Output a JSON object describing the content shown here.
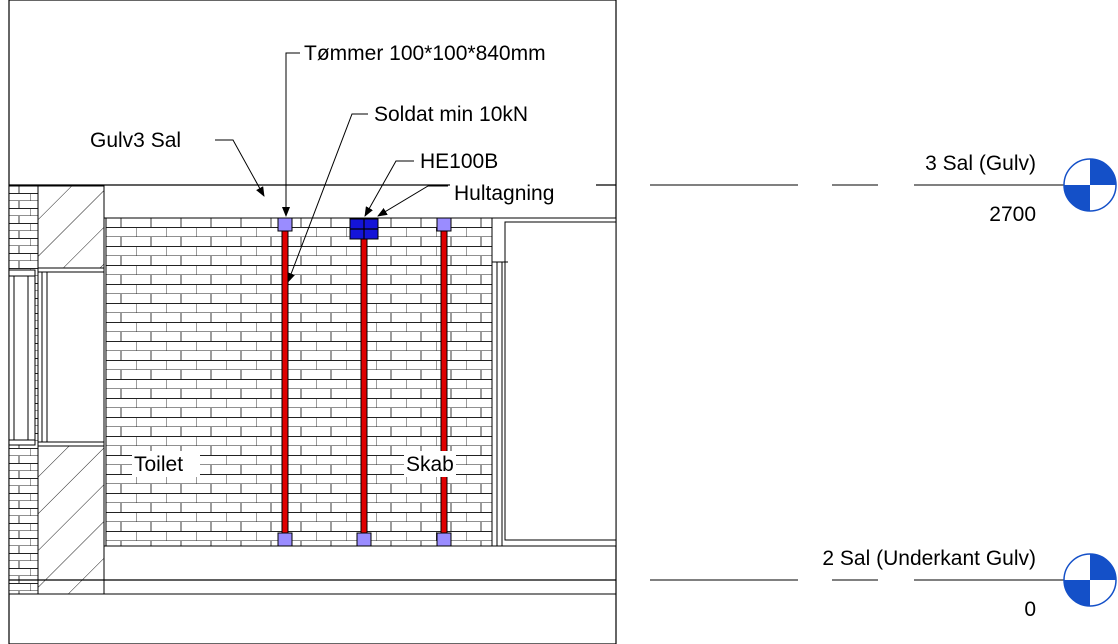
{
  "annotations": {
    "timber": "Tømmer 100*100*840mm",
    "soldier": "Soldat min 10kN",
    "floor": "Gulv3 Sal",
    "beam": "HE100B",
    "notch": "Hultagning"
  },
  "rooms": {
    "toilet": "Toilet",
    "cabinet": "Skab"
  },
  "levels": [
    {
      "name": "3 Sal (Gulv)",
      "elevation": "2700"
    },
    {
      "name": "2 Sal (Underkant Gulv)",
      "elevation": "0"
    }
  ],
  "colors": {
    "prop": "#e00000",
    "bearing": "#9a8cff",
    "beam": "#1414d8",
    "level_marker": "#1450c8"
  }
}
